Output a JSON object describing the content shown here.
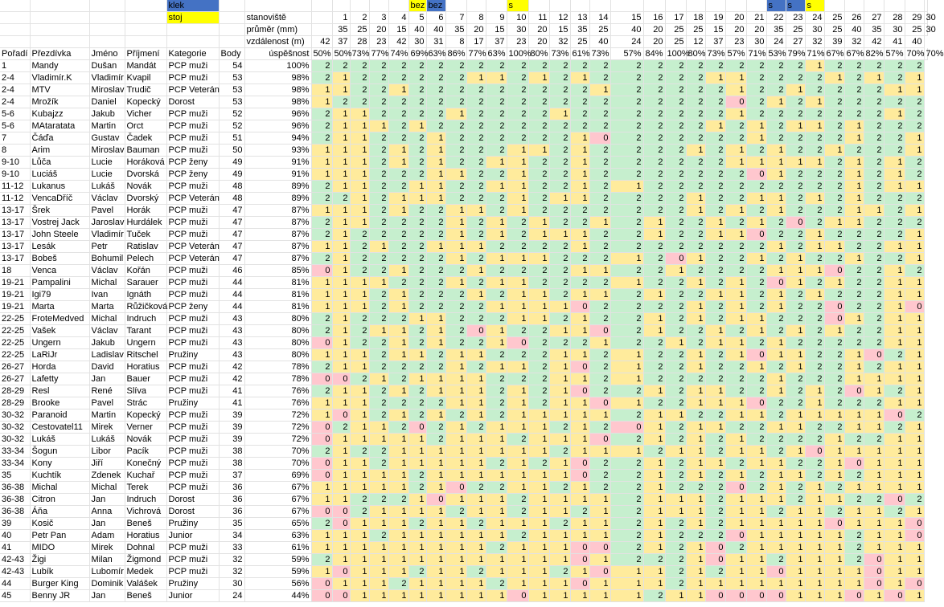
{
  "colors": {
    "green": "#c6efce",
    "yellow": "#ffeb9c",
    "red": "#ffc7ce",
    "blue": "#4472c4",
    "brightYellow": "#ffff00"
  },
  "legend": {
    "blue_label": "klek",
    "yellow_label": "stoj"
  },
  "labels": {
    "station": "stanoviště",
    "diameter": "průměr (mm)",
    "distance": "vzdálenost (m)",
    "success": "úspěšnost"
  },
  "headers": [
    "Pořadí",
    "Přezdívka",
    "Jméno",
    "Příjmení",
    "Kategorie",
    "Body"
  ],
  "stations": [
    "1",
    "2",
    "3",
    "4",
    "5",
    "6",
    "7",
    "8",
    "9",
    "10",
    "11",
    "12",
    "13",
    "14",
    "15",
    "16",
    "17",
    "18",
    "19",
    "20",
    "21",
    "22",
    "23",
    "24",
    "25",
    "26",
    "27",
    "28",
    "29",
    "30"
  ],
  "marks": [
    "",
    "",
    "",
    "",
    "bez",
    "bez",
    "",
    "",
    "",
    "s",
    "",
    "",
    "",
    "",
    "",
    "",
    "",
    "",
    "",
    "",
    "",
    "s",
    "s",
    "s",
    "",
    "",
    "",
    "",
    "",
    ""
  ],
  "markColors": [
    "",
    "",
    "",
    "",
    "y",
    "b",
    "",
    "",
    "",
    "y",
    "",
    "",
    "",
    "",
    "",
    "",
    "",
    "",
    "",
    "",
    "",
    "b",
    "b",
    "y",
    "",
    "",
    "",
    "",
    "",
    ""
  ],
  "diameters": [
    "35",
    "25",
    "20",
    "15",
    "40",
    "40",
    "35",
    "20",
    "15",
    "30",
    "20",
    "15",
    "35",
    "25",
    "40",
    "20",
    "25",
    "25",
    "15",
    "20",
    "20",
    "35",
    "25",
    "30",
    "25",
    "40",
    "35",
    "30",
    "25",
    "30"
  ],
  "distances": [
    "42",
    "37",
    "28",
    "23",
    "42",
    "30",
    "31",
    "8",
    "17",
    "37",
    "23",
    "20",
    "32",
    "25",
    "40",
    "24",
    "20",
    "25",
    "12",
    "37",
    "23",
    "30",
    "24",
    "27",
    "32",
    "39",
    "32",
    "42",
    "41",
    "40"
  ],
  "stationPct": [
    "50%",
    "50%",
    "73%",
    "77%",
    "74%",
    "69%",
    "63%",
    "86%",
    "77%",
    "63%",
    "100%",
    "80%",
    "73%",
    "61%",
    "73%",
    "57%",
    "84%",
    "100%",
    "80%",
    "73%",
    "57%",
    "71%",
    "53%",
    "79%",
    "71%",
    "67%",
    "67%",
    "82%",
    "57%",
    "70%",
    "70%"
  ],
  "rows": [
    {
      "rank": "1",
      "nick": "Mandy",
      "first": "Dušan",
      "last": "Mandát",
      "cat": "PCP muži",
      "pts": "54",
      "pct": "100%",
      "scores": "222222222222222222222222122222"
    },
    {
      "rank": "2-4",
      "nick": "Vladimír.K",
      "first": "Vladimír",
      "last": "Kvapil",
      "cat": "PCP muži",
      "pts": "53",
      "pct": "98%",
      "scores": "212222221121212222211222212121"
    },
    {
      "rank": "2-4",
      "nick": "MTV",
      "first": "Miroslav",
      "last": "Trudič",
      "cat": "PCP Veterán",
      "pts": "53",
      "pct": "98%",
      "scores": "112212222222221222221221222211"
    },
    {
      "rank": "2-4",
      "nick": "Mrožík",
      "first": "Daniel",
      "last": "Kopecký",
      "cat": "Dorost",
      "pts": "53",
      "pct": "98%",
      "scores": "122222222222222222220212122222"
    },
    {
      "rank": "5-6",
      "nick": "Kubajzz",
      "first": "Jakub",
      "last": "Vicher",
      "cat": "PCP muži",
      "pts": "52",
      "pct": "96%",
      "scores": "211222212222122222221222222212"
    },
    {
      "rank": "5-6",
      "nick": "MAtaratata",
      "first": "Martin",
      "last": "Orct",
      "cat": "PCP muži",
      "pts": "52",
      "pct": "96%",
      "scores": "211121222222222222212121121222"
    },
    {
      "rank": "7",
      "nick": "Čáďa",
      "first": "Gustav",
      "last": "Čadek",
      "cat": "PCP muži",
      "pts": "51",
      "pct": "94%",
      "scores": "211222122222210222222122221221"
    },
    {
      "rank": "8",
      "nick": "Arim",
      "first": "Miroslav",
      "last": "Bauman",
      "cat": "PCP muži",
      "pts": "50",
      "pct": "93%",
      "scores": "111212122211212222121212212221"
    },
    {
      "rank": "9-10",
      "nick": "Lůča",
      "first": "Lucie",
      "last": "Horáková",
      "cat": "PCP ženy",
      "pts": "49",
      "pct": "91%",
      "scores": "111212122112212222221111121212"
    },
    {
      "rank": "9-10",
      "nick": "Luciáš",
      "first": "Lucie",
      "last": "Dvorská",
      "cat": "PCP ženy",
      "pts": "49",
      "pct": "91%",
      "scores": "111222112212212222222012221212"
    },
    {
      "rank": "11-12",
      "nick": "Lukanus",
      "first": "Lukáš",
      "last": "Novák",
      "cat": "PCP muži",
      "pts": "48",
      "pct": "89%",
      "scores": "211221122112212122222222221211"
    },
    {
      "rank": "11-12",
      "nick": "VencaDříč",
      "first": "Václav",
      "last": "Dvorský",
      "cat": "PCP Veterán",
      "pts": "48",
      "pct": "89%",
      "scores": "221211122212112222122112121222"
    },
    {
      "rank": "13-17",
      "nick": "Šrek",
      "first": "Pavel",
      "last": "Horák",
      "cat": "PCP muži",
      "pts": "47",
      "pct": "87%",
      "scores": "111212211212222222121212221121"
    },
    {
      "rank": "13-17",
      "nick": "Vostrej Jack",
      "first": "Jaroslav",
      "last": "Hurdálek",
      "cat": "PCP muži",
      "pts": "47",
      "pct": "87%",
      "scores": "211222212121221212212120211222"
    },
    {
      "rank": "13-17",
      "nick": "John Steele",
      "first": "Vladimír",
      "last": "Tuček",
      "cat": "PCP muži",
      "pts": "47",
      "pct": "87%",
      "scores": "212222212121112212211022122221"
    },
    {
      "rank": "13-17",
      "nick": "Lesák",
      "first": "Petr",
      "last": "Ratislav",
      "cat": "PCP Veterán",
      "pts": "47",
      "pct": "87%",
      "scores": "112122111222212222222212112211"
    },
    {
      "rank": "13-17",
      "nick": "Bobeš",
      "first": "Bohumil",
      "last": "Pelech",
      "cat": "PCP Veterán",
      "pts": "47",
      "pct": "87%",
      "scores": "212222212111222120122121221221"
    },
    {
      "rank": "18",
      "nick": "Venca",
      "first": "Václav",
      "last": "Kořán",
      "cat": "PCP muži",
      "pts": "46",
      "pct": "85%",
      "scores": "012212221222211221222211102212"
    },
    {
      "rank": "19-21",
      "nick": "Pampalini",
      "first": "Michal",
      "last": "Sarauer",
      "cat": "PCP muži",
      "pts": "44",
      "pct": "81%",
      "scores": "111122212112222122121201212211"
    },
    {
      "rank": "19-21",
      "nick": "Igi79",
      "first": "Ivan",
      "last": "Ignáth",
      "cat": "PCP muži",
      "pts": "44",
      "pct": "81%",
      "scores": "111212221211211212211212122211"
    },
    {
      "rank": "19-21",
      "nick": "Marta",
      "first": "Marta",
      "last": "Růžičková",
      "cat": "PCP ženy",
      "pts": "44",
      "pct": "81%",
      "scores": "111212222111102222121212202210"
    },
    {
      "rank": "22-25",
      "nick": "FroteMedved",
      "first": "Michal",
      "last": "Indruch",
      "cat": "PCP muži",
      "pts": "43",
      "pct": "80%",
      "scores": "212221122211212212121122201211"
    },
    {
      "rank": "22-25",
      "nick": "Vašek",
      "first": "Václav",
      "last": "Tarant",
      "cat": "PCP muži",
      "pts": "43",
      "pct": "80%",
      "scores": "212112120122110212212121212211"
    },
    {
      "rank": "22-25",
      "nick": "Ungern",
      "first": "Jakub",
      "last": "Ungern",
      "cat": "PCP muži",
      "pts": "43",
      "pct": "80%",
      "scores": "012212122102221221211212222211"
    },
    {
      "rank": "22-25",
      "nick": "LaRiJr",
      "first": "Ladislav",
      "last": "Ritschel",
      "cat": "Pružiny",
      "pts": "43",
      "pct": "80%",
      "scores": "111211211222112122121011221021"
    },
    {
      "rank": "26-27",
      "nick": "Horda",
      "first": "David",
      "last": "Horatius",
      "cat": "PCP muži",
      "pts": "42",
      "pct": "78%",
      "scores": "211222212112102122122121221211"
    },
    {
      "rank": "26-27",
      "nick": "Lafetty",
      "first": "Jan",
      "last": "Bauer",
      "cat": "PCP muži",
      "pts": "42",
      "pct": "78%",
      "scores": "002121111222112122222212221111"
    },
    {
      "rank": "28-29",
      "nick": "Resl",
      "first": "René",
      "last": "Slíva",
      "cat": "PCP muži",
      "pts": "41",
      "pct": "76%",
      "scores": "211212111212102212112212120121"
    },
    {
      "rank": "28-29",
      "nick": "Brooke",
      "first": "Pavel",
      "last": "Strác",
      "cat": "Pružiny",
      "pts": "41",
      "pct": "76%",
      "scores": "111222211212110122111022122211"
    },
    {
      "rank": "30-32",
      "nick": "Paranoid",
      "first": "Martin",
      "last": "Kopecký",
      "cat": "PCP muži",
      "pts": "39",
      "pct": "72%",
      "scores": "101212121211111211221121111102"
    },
    {
      "rank": "30-32",
      "nick": "Cestovatel11",
      "first": "Mirek",
      "last": "Verner",
      "cat": "PCP muži",
      "pts": "39",
      "pct": "72%",
      "scores": "021120212111212012112211221121"
    },
    {
      "rank": "30-32",
      "nick": "Lukáš",
      "first": "Lukáš",
      "last": "Novák",
      "cat": "PCP muži",
      "pts": "39",
      "pct": "72%",
      "scores": "011111211121110212121222212211"
    },
    {
      "rank": "33-34",
      "nick": "Šogun",
      "first": "Libor",
      "last": "Pacík",
      "cat": "PCP muži",
      "pts": "38",
      "pct": "70%",
      "scores": "212211111111211121121121011111"
    },
    {
      "rank": "33-34",
      "nick": "Kony",
      "first": "Jiří",
      "last": "Konečný",
      "cat": "PCP muži",
      "pts": "38",
      "pct": "70%",
      "scores": "011211111212102212112112210111"
    },
    {
      "rank": "35",
      "nick": "Kuchtík",
      "first": "Zdenek",
      "last": "Kuchař",
      "cat": "PCP muži",
      "pts": "37",
      "pct": "69%",
      "scores": "011112111111102212121211212111"
    },
    {
      "rank": "36-38",
      "nick": "Michal",
      "first": "Michal",
      "last": "Terek",
      "cat": "PCP muži",
      "pts": "36",
      "pct": "67%",
      "scores": "111112102211212212220212121111"
    },
    {
      "rank": "36-38",
      "nick": "Citron",
      "first": "Jan",
      "last": "Indruch",
      "cat": "Dorost",
      "pts": "36",
      "pct": "67%",
      "scores": "112221011121111211121112112202"
    },
    {
      "rank": "36-38",
      "nick": "Áňa",
      "first": "Anna",
      "last": "Vichrová",
      "cat": "Dorost",
      "pts": "36",
      "pct": "67%",
      "scores": "002111121121121211121121121121"
    },
    {
      "rank": "39",
      "nick": "Kosič",
      "first": "Jan",
      "last": "Beneš",
      "cat": "Pružiny",
      "pts": "35",
      "pct": "65%",
      "scores": "201112112111211212121111101110"
    },
    {
      "rank": "40",
      "nick": "Petr Pan",
      "first": "Adam",
      "last": "Horatius",
      "cat": "Junior",
      "pts": "34",
      "pct": "63%",
      "scores": "111211111121111212220111112110"
    },
    {
      "rank": "41",
      "nick": "MIDO",
      "first": "Mirek",
      "last": "Dohnal",
      "cat": "PCP muži",
      "pts": "33",
      "pct": "61%",
      "scores": "111111111211100212102111112111"
    },
    {
      "rank": "42-43",
      "nick": "Žigi",
      "first": "Milan",
      "last": "Žigmond",
      "cat": "PCP muži",
      "pts": "32",
      "pct": "59%",
      "scores": "211111111111101222101121112011"
    },
    {
      "rank": "42-43",
      "nick": "Lubík",
      "first": "Lubomír",
      "last": "Medek",
      "cat": "PCP muži",
      "pts": "32",
      "pct": "59%",
      "scores": "101112112111210112121101111011"
    },
    {
      "rank": "44",
      "nick": "Burger King",
      "first": "Dominik",
      "last": "Valášek",
      "cat": "Pružiny",
      "pts": "30",
      "pct": "56%",
      "scores": "011121111211101112111111111010"
    },
    {
      "rank": "45",
      "nick": "Benny JR",
      "first": "Jan",
      "last": "Beneš",
      "cat": "Junior",
      "pts": "24",
      "pct": "44%",
      "scores": "001111111101111121100001110101"
    }
  ]
}
